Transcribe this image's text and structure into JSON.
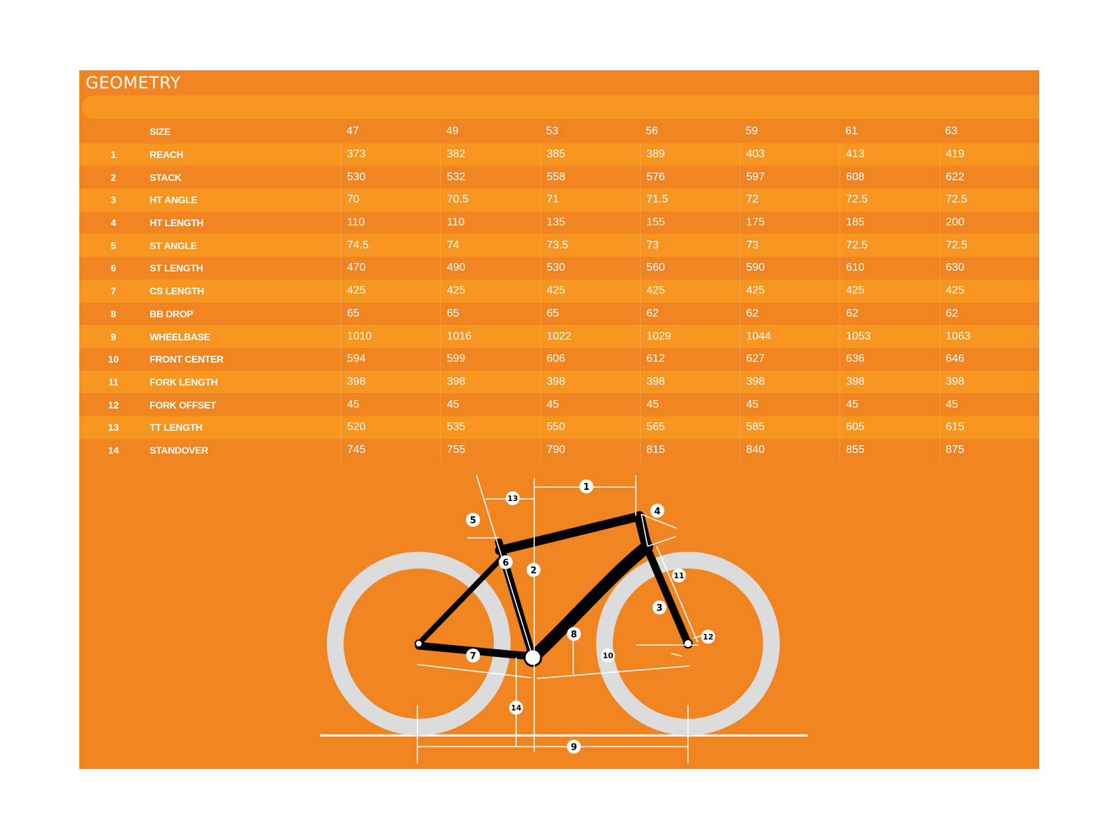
{
  "title": "GEOMETRY",
  "header": {
    "size_label": "SIZE",
    "sizes": [
      "47",
      "49",
      "53",
      "56",
      "59",
      "61",
      "63"
    ]
  },
  "rows": [
    {
      "num": "1",
      "label": "REACH",
      "values": [
        "373",
        "382",
        "385",
        "389",
        "403",
        "413",
        "419"
      ]
    },
    {
      "num": "2",
      "label": "STACK",
      "values": [
        "530",
        "532",
        "558",
        "576",
        "597",
        "608",
        "622"
      ]
    },
    {
      "num": "3",
      "label": "HT ANGLE",
      "values": [
        "70",
        "70.5",
        "71",
        "71.5",
        "72",
        "72.5",
        "72.5"
      ]
    },
    {
      "num": "4",
      "label": "HT LENGTH",
      "values": [
        "110",
        "110",
        "135",
        "155",
        "175",
        "185",
        "200"
      ]
    },
    {
      "num": "5",
      "label": "ST ANGLE",
      "values": [
        "74.5",
        "74",
        "73.5",
        "73",
        "73",
        "72.5",
        "72.5"
      ]
    },
    {
      "num": "6",
      "label": "ST LENGTH",
      "values": [
        "470",
        "490",
        "530",
        "560",
        "590",
        "610",
        "630"
      ]
    },
    {
      "num": "7",
      "label": "CS LENGTH",
      "values": [
        "425",
        "425",
        "425",
        "425",
        "425",
        "425",
        "425"
      ]
    },
    {
      "num": "8",
      "label": "BB DROP",
      "values": [
        "65",
        "65",
        "65",
        "62",
        "62",
        "62",
        "62"
      ]
    },
    {
      "num": "9",
      "label": "WHEELBASE",
      "values": [
        "1010",
        "1016",
        "1022",
        "1029",
        "1044",
        "1053",
        "1063"
      ]
    },
    {
      "num": "10",
      "label": "FRONT CENTER",
      "values": [
        "594",
        "599",
        "606",
        "612",
        "627",
        "636",
        "646"
      ]
    },
    {
      "num": "11",
      "label": "FORK LENGTH",
      "values": [
        "398",
        "398",
        "398",
        "398",
        "398",
        "398",
        "398"
      ]
    },
    {
      "num": "12",
      "label": "FORK OFFSET",
      "values": [
        "45",
        "45",
        "45",
        "45",
        "45",
        "45",
        "45"
      ]
    },
    {
      "num": "13",
      "label": "TT LENGTH",
      "values": [
        "520",
        "535",
        "550",
        "565",
        "585",
        "605",
        "615"
      ]
    },
    {
      "num": "14",
      "label": "STANDOVER",
      "values": [
        "745",
        "755",
        "790",
        "815",
        "840",
        "855",
        "875"
      ]
    }
  ],
  "diagram": {
    "labels": [
      "1",
      "2",
      "3",
      "4",
      "5",
      "6",
      "7",
      "8",
      "9",
      "10",
      "11",
      "12",
      "13",
      "14"
    ]
  },
  "colors": {
    "background": "#f08421",
    "band": "#f6951f",
    "wheel": "#dddddd",
    "frame": "#000000",
    "text": "#ffffff"
  }
}
